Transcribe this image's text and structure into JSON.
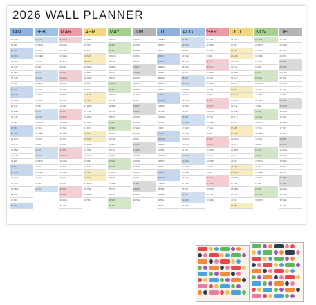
{
  "planner": {
    "title": "2026 WALL PLANNER",
    "weekday_abbrev": [
      "MON",
      "TUE",
      "WED",
      "THU",
      "FRI",
      "SAT",
      "SUN"
    ],
    "months": [
      {
        "label": "JAN",
        "days": 31,
        "start_weekday": 3,
        "color": "#8fb1de",
        "weekend_color": "#c4d7ef"
      },
      {
        "label": "FEB",
        "days": 28,
        "start_weekday": 6,
        "color": "#9cc0e6",
        "weekend_color": "#cfe0f2"
      },
      {
        "label": "MAR",
        "days": 31,
        "start_weekday": 6,
        "color": "#ec9aa6",
        "weekend_color": "#f6cdd3"
      },
      {
        "label": "APR",
        "days": 30,
        "start_weekday": 2,
        "color": "#f2d780",
        "weekend_color": "#f8ebbf"
      },
      {
        "label": "MAY",
        "days": 31,
        "start_weekday": 4,
        "color": "#a6d08e",
        "weekend_color": "#d2e7c6"
      },
      {
        "label": "JUN",
        "days": 30,
        "start_weekday": 0,
        "color": "#b5b5b5",
        "weekend_color": "#dadada"
      },
      {
        "label": "JUL",
        "days": 31,
        "start_weekday": 2,
        "color": "#8fb1de",
        "weekend_color": "#c4d7ef"
      },
      {
        "label": "AUG",
        "days": 31,
        "start_weekday": 5,
        "color": "#9cc0e6",
        "weekend_color": "#cfe0f2"
      },
      {
        "label": "SEP",
        "days": 30,
        "start_weekday": 1,
        "color": "#ec9aa6",
        "weekend_color": "#f6cdd3"
      },
      {
        "label": "OCT",
        "days": 31,
        "start_weekday": 3,
        "color": "#f2d780",
        "weekend_color": "#f8ebbf"
      },
      {
        "label": "NOV",
        "days": 30,
        "start_weekday": 6,
        "color": "#a6d08e",
        "weekend_color": "#d2e7c6"
      },
      {
        "label": "DEC",
        "days": 31,
        "start_weekday": 1,
        "color": "#b5b5b5",
        "weekend_color": "#dadada"
      }
    ]
  },
  "stickers": {
    "palette": [
      "#e8474e",
      "#f2c14e",
      "#4aa3d8",
      "#5fb85f",
      "#9b59b6",
      "#f08a3c",
      "#2c3e50",
      "#ec7ba5"
    ]
  }
}
